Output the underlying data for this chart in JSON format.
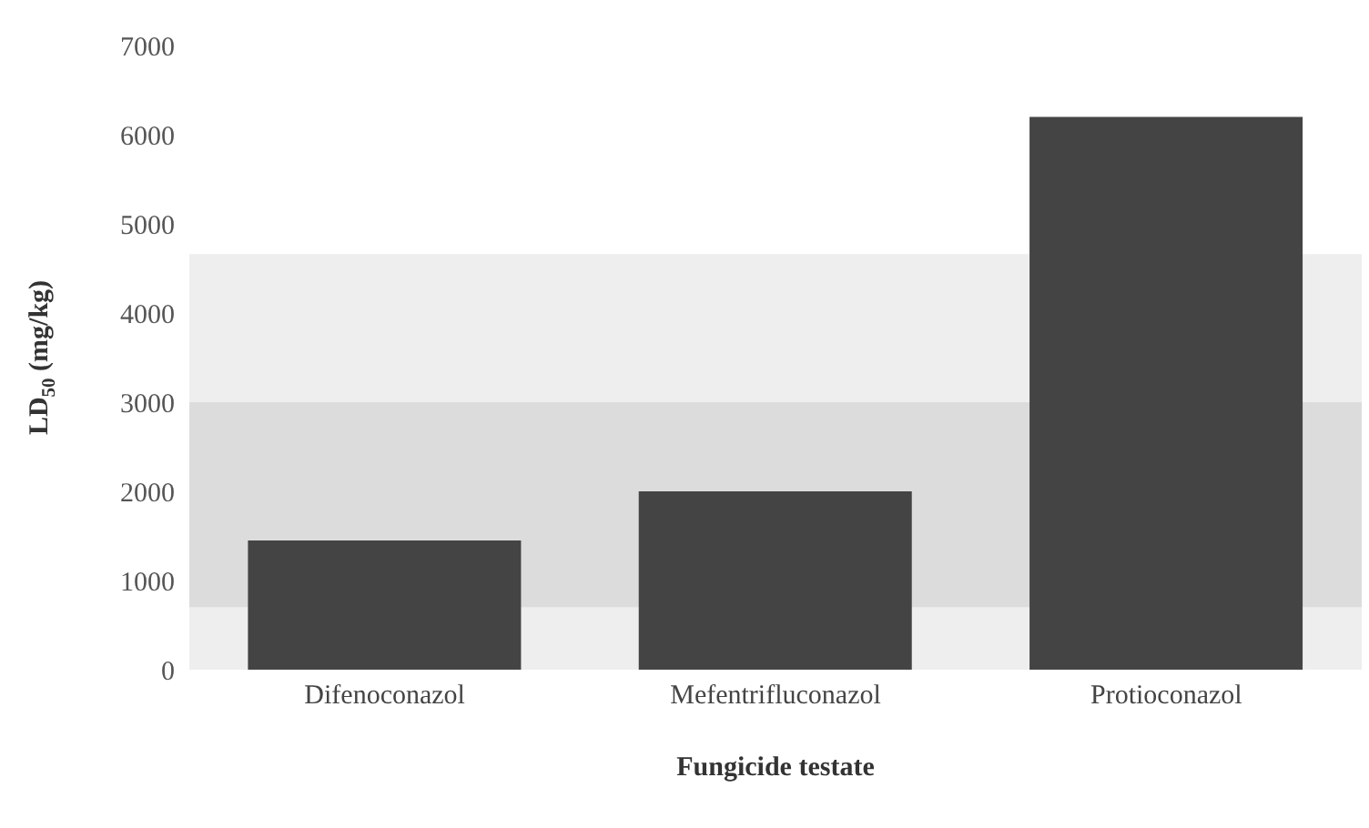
{
  "chart_data": {
    "type": "bar",
    "xlabel": "Fungicide testate",
    "ylabel": "LD$_{50}$ (mg/kg)",
    "categories": [
      "Difenoconazol",
      "Mefentrifluconazol",
      "Protioconazol"
    ],
    "values": [
      1450,
      2000,
      6200
    ],
    "color": "#444444",
    "ylim": [
      0,
      7000
    ],
    "yticks": [
      0,
      1000,
      2000,
      3000,
      4000,
      5000,
      6000,
      7000
    ],
    "grid": false,
    "legend": false,
    "bands": [
      {
        "axis": "y",
        "from": 0,
        "to": 700,
        "color": "#eeeeee"
      },
      {
        "axis": "y",
        "from": 700,
        "to": 3000,
        "color": "#dcdcdc"
      },
      {
        "axis": "y",
        "from": 3000,
        "to": 4660,
        "color": "#eeeeee"
      }
    ]
  }
}
